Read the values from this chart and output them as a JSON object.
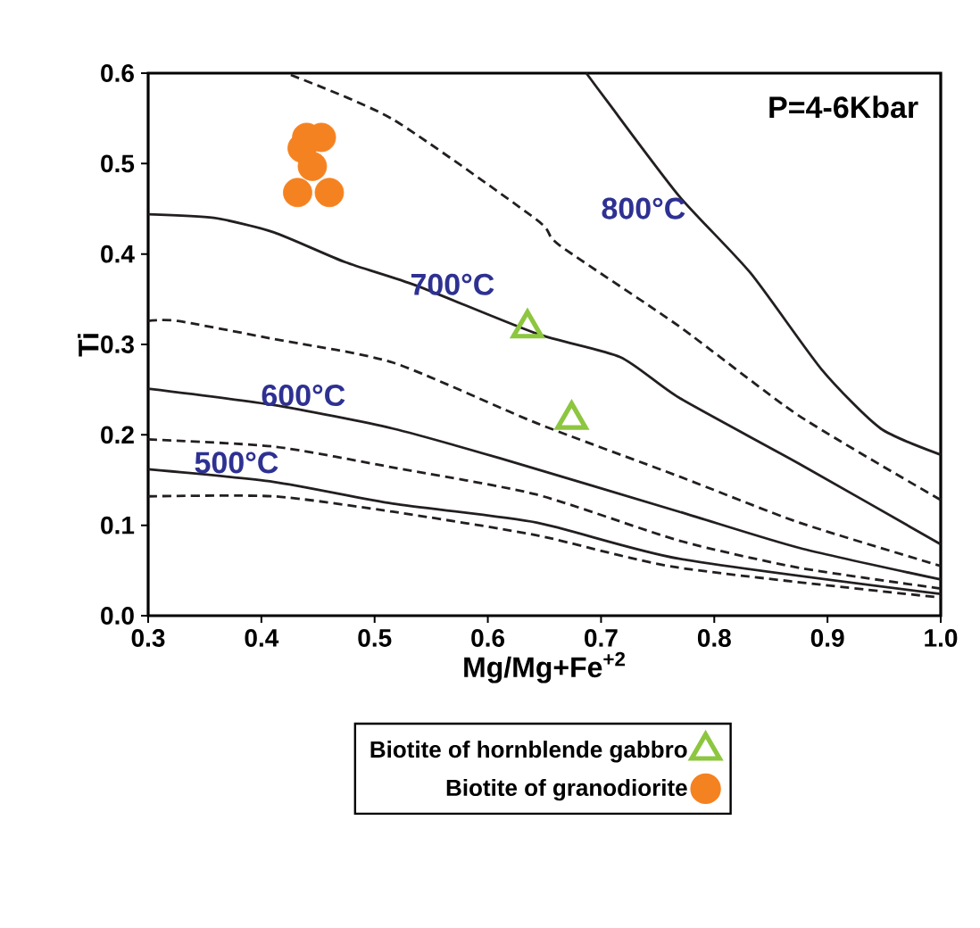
{
  "chart_data": {
    "type": "line",
    "xlabel": "Mg/Mg+Fe$^{+2}$",
    "ylabel": "Ti",
    "xlim": [
      0.3,
      1.0
    ],
    "ylim": [
      0.0,
      0.6
    ],
    "xticks": [
      0.3,
      0.4,
      0.5,
      0.6,
      0.7,
      0.8,
      0.9,
      {
        "value": 1.0,
        "label": "1.0"
      }
    ],
    "yticks": [
      {
        "value": 0.0,
        "label": "0.0"
      },
      0.1,
      0.2,
      0.3,
      0.4,
      0.5,
      0.6
    ],
    "legend": "bottom",
    "grid": false,
    "series": [
      {
        "type": "line",
        "name": "800°C",
        "color": "#231f20",
        "line_style": "solid",
        "x": [
          0.687,
          0.706,
          0.769,
          0.832,
          0.895,
          0.947,
          1.0
        ],
        "values": [
          0.6,
          0.568,
          0.464,
          0.379,
          0.272,
          0.207,
          0.178
        ]
      },
      {
        "type": "line",
        "color": "#231f20",
        "line_style": "dashed",
        "x": [
          0.426,
          0.516,
          0.643,
          0.663,
          0.769,
          0.875,
          1.0
        ],
        "values": [
          0.598,
          0.549,
          0.438,
          0.41,
          0.32,
          0.221,
          0.128
        ]
      },
      {
        "type": "line",
        "name": "700°C",
        "color": "#231f20",
        "line_style": "solid",
        "x": [
          0.3,
          0.358,
          0.411,
          0.474,
          0.537,
          0.643,
          0.717,
          0.769,
          0.875,
          1.0
        ],
        "values": [
          0.444,
          0.44,
          0.424,
          0.391,
          0.365,
          0.312,
          0.286,
          0.241,
          0.168,
          0.079
        ]
      },
      {
        "type": "line",
        "color": "#231f20",
        "line_style": "dashed",
        "x": [
          0.3,
          0.326,
          0.411,
          0.516,
          0.643,
          0.769,
          0.875,
          1.0
        ],
        "values": [
          0.326,
          0.326,
          0.306,
          0.28,
          0.213,
          0.154,
          0.103,
          0.055
        ]
      },
      {
        "type": "line",
        "name": "600°C",
        "color": "#231f20",
        "line_style": "solid",
        "x": [
          0.3,
          0.411,
          0.516,
          0.611,
          0.769,
          0.875,
          1.0
        ],
        "values": [
          0.251,
          0.233,
          0.207,
          0.174,
          0.115,
          0.075,
          0.04
        ]
      },
      {
        "type": "line",
        "color": "#231f20",
        "line_style": "dashed",
        "x": [
          0.3,
          0.411,
          0.516,
          0.643,
          0.769,
          0.875,
          1.0
        ],
        "values": [
          0.195,
          0.187,
          0.164,
          0.134,
          0.083,
          0.053,
          0.03
        ]
      },
      {
        "type": "line",
        "name": "500°C",
        "color": "#231f20",
        "line_style": "solid",
        "x": [
          0.3,
          0.411,
          0.516,
          0.643,
          0.769,
          1.0
        ],
        "values": [
          0.162,
          0.148,
          0.124,
          0.103,
          0.063,
          0.024
        ]
      },
      {
        "type": "line",
        "color": "#231f20",
        "line_style": "dashed",
        "x": [
          0.3,
          0.411,
          0.516,
          0.643,
          0.769,
          1.0
        ],
        "values": [
          0.132,
          0.132,
          0.115,
          0.089,
          0.053,
          0.02
        ]
      },
      {
        "type": "scatter",
        "name": "Biotite of hornblende gabbro",
        "color": "#8dc63f",
        "marker": "triangle",
        "x": [
          0.635,
          0.674
        ],
        "values": [
          0.318,
          0.217
        ]
      },
      {
        "type": "scatter",
        "name": "Biotite of granodiorite",
        "color": "#f58220",
        "marker": "circle",
        "x": [
          0.44,
          0.453,
          0.436,
          0.445,
          0.432,
          0.46
        ],
        "values": [
          0.529,
          0.529,
          0.517,
          0.497,
          0.468,
          0.468
        ]
      }
    ],
    "annotations": [
      "P=4-6Kbar"
    ]
  }
}
